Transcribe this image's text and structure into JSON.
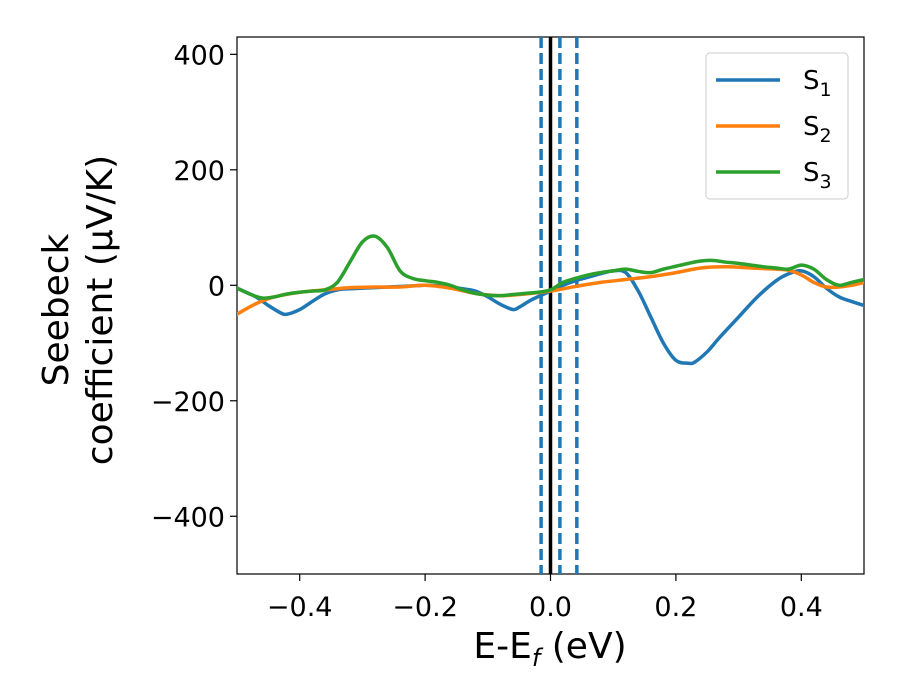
{
  "chart_data": {
    "type": "line",
    "xlabel_main": "E-E",
    "xlabel_sub": "f",
    "xlabel_unit": " (eV)",
    "ylabel_line1": "Seebeck",
    "ylabel_line2": "coefficient  (μV/K)",
    "xlim": [
      -0.5,
      0.5
    ],
    "ylim": [
      -500,
      430
    ],
    "xticks": [
      -0.4,
      -0.2,
      0.0,
      0.2,
      0.4
    ],
    "xtick_labels": [
      "−0.4",
      "−0.2",
      "0.0",
      "0.2",
      "0.4"
    ],
    "yticks": [
      400,
      200,
      0,
      -200,
      -400
    ],
    "ytick_labels": [
      "400",
      "200",
      "0",
      "−200",
      "−400"
    ],
    "grid": false,
    "legend_position": "top-right",
    "vertical_lines": [
      {
        "x": -0.015,
        "style": "dashed",
        "color": "#1f77b4"
      },
      {
        "x": 0.015,
        "style": "dashed",
        "color": "#1f77b4"
      },
      {
        "x": 0.042,
        "style": "dashed",
        "color": "#1f77b4"
      },
      {
        "x": 0.0,
        "style": "solid",
        "color": "#000000"
      }
    ],
    "series": [
      {
        "name_main": "S",
        "name_sub": "1",
        "color": "#1f77b4",
        "x": [
          -0.5,
          -0.47,
          -0.45,
          -0.43,
          -0.42,
          -0.4,
          -0.38,
          -0.36,
          -0.34,
          -0.32,
          -0.3,
          -0.28,
          -0.26,
          -0.24,
          -0.22,
          -0.2,
          -0.18,
          -0.16,
          -0.14,
          -0.12,
          -0.1,
          -0.08,
          -0.06,
          -0.05,
          -0.03,
          -0.01,
          0.0,
          0.02,
          0.04,
          0.06,
          0.08,
          0.1,
          0.12,
          0.14,
          0.16,
          0.18,
          0.2,
          0.22,
          0.23,
          0.25,
          0.27,
          0.3,
          0.33,
          0.36,
          0.38,
          0.4,
          0.42,
          0.44,
          0.46,
          0.48,
          0.5
        ],
        "y": [
          -5,
          -20,
          -35,
          -48,
          -50,
          -42,
          -28,
          -15,
          -8,
          -6,
          -5,
          -4,
          -3,
          -2,
          -1,
          0,
          -1,
          -3,
          -6,
          -10,
          -20,
          -33,
          -42,
          -38,
          -25,
          -15,
          -10,
          0,
          8,
          14,
          20,
          25,
          22,
          -10,
          -55,
          -100,
          -130,
          -135,
          -133,
          -115,
          -90,
          -55,
          -20,
          8,
          20,
          25,
          15,
          -5,
          -20,
          -28,
          -35
        ]
      },
      {
        "name_main": "S",
        "name_sub": "2",
        "color": "#ff7f0e",
        "x": [
          -0.5,
          -0.47,
          -0.44,
          -0.4,
          -0.36,
          -0.32,
          -0.28,
          -0.24,
          -0.2,
          -0.16,
          -0.12,
          -0.08,
          -0.04,
          0.0,
          0.04,
          0.08,
          0.12,
          0.16,
          0.2,
          0.24,
          0.28,
          0.32,
          0.36,
          0.38,
          0.4,
          0.42,
          0.44,
          0.46,
          0.48,
          0.5
        ],
        "y": [
          -50,
          -32,
          -20,
          -12,
          -8,
          -4,
          -3,
          -3,
          0,
          -5,
          -14,
          -18,
          -15,
          -10,
          -2,
          5,
          10,
          15,
          22,
          30,
          32,
          30,
          28,
          26,
          18,
          5,
          -3,
          -3,
          0,
          5
        ]
      },
      {
        "name_main": "S",
        "name_sub": "3",
        "color": "#2ca02c",
        "x": [
          -0.5,
          -0.48,
          -0.46,
          -0.44,
          -0.42,
          -0.4,
          -0.38,
          -0.36,
          -0.34,
          -0.32,
          -0.3,
          -0.28,
          -0.26,
          -0.24,
          -0.22,
          -0.2,
          -0.18,
          -0.16,
          -0.14,
          -0.12,
          -0.1,
          -0.08,
          -0.06,
          -0.04,
          -0.02,
          0.0,
          0.02,
          0.04,
          0.06,
          0.08,
          0.1,
          0.12,
          0.14,
          0.16,
          0.18,
          0.2,
          0.22,
          0.24,
          0.26,
          0.28,
          0.3,
          0.32,
          0.34,
          0.36,
          0.38,
          0.4,
          0.42,
          0.44,
          0.46,
          0.48,
          0.5
        ],
        "y": [
          -5,
          -15,
          -22,
          -20,
          -15,
          -12,
          -10,
          -8,
          5,
          40,
          75,
          85,
          65,
          25,
          12,
          8,
          5,
          0,
          -8,
          -14,
          -17,
          -18,
          -16,
          -14,
          -12,
          -8,
          5,
          12,
          18,
          22,
          25,
          28,
          24,
          22,
          28,
          33,
          38,
          42,
          43,
          40,
          38,
          35,
          32,
          30,
          28,
          35,
          28,
          10,
          0,
          5,
          10
        ]
      }
    ]
  }
}
